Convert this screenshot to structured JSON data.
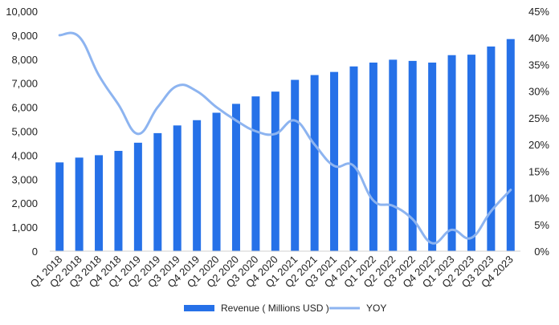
{
  "chart_data": {
    "type": "bar",
    "categories": [
      "Q1 2018",
      "Q2 2018",
      "Q3 2018",
      "Q4 2018",
      "Q1 2019",
      "Q2 2019",
      "Q3 2019",
      "Q4 2019",
      "Q1 2020",
      "Q2 2020",
      "Q3 2020",
      "Q4 2020",
      "Q1 2021",
      "Q2 2021",
      "Q3 2021",
      "Q4 2021",
      "Q1 2022",
      "Q2 2022",
      "Q3 2022",
      "Q4 2022",
      "Q1 2023",
      "Q2 2023",
      "Q3 2023",
      "Q4 2023"
    ],
    "series": [
      {
        "name": "Revenue ( Millions USD )",
        "type": "bar",
        "axis": "left",
        "color": "#2671E8",
        "values": [
          3700,
          3900,
          4000,
          4180,
          4520,
          4920,
          5240,
          5460,
          5770,
          6140,
          6450,
          6650,
          7140,
          7340,
          7470,
          7700,
          7860,
          7980,
          7930,
          7860,
          8170,
          8190,
          8530,
          8840
        ]
      },
      {
        "name": "YOY",
        "type": "line",
        "axis": "right",
        "color": "#8DB4F0",
        "values": [
          40.5,
          40.2,
          33.0,
          27.5,
          22.0,
          27.0,
          31.0,
          30.0,
          27.0,
          24.5,
          22.5,
          22.0,
          24.5,
          20.0,
          16.0,
          16.0,
          9.5,
          8.5,
          6.0,
          1.5,
          4.0,
          2.5,
          7.5,
          11.5
        ]
      }
    ],
    "y_left": {
      "min": 0,
      "max": 10000,
      "ticks": [
        "0",
        "1,000",
        "2,000",
        "3,000",
        "4,000",
        "5,000",
        "6,000",
        "7,000",
        "8,000",
        "9,000",
        "10,000"
      ]
    },
    "y_right": {
      "min": 0,
      "max": 45,
      "ticks": [
        "0%",
        "5%",
        "10%",
        "15%",
        "20%",
        "25%",
        "30%",
        "35%",
        "40%",
        "45%"
      ]
    },
    "grid": false,
    "legend": "bottom"
  }
}
